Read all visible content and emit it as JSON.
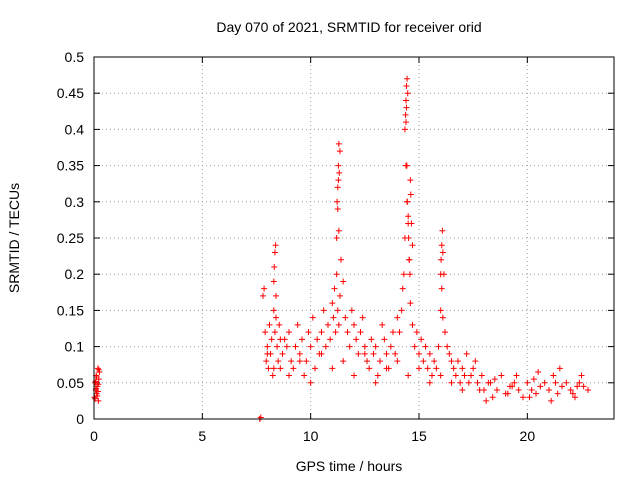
{
  "chart_data": {
    "type": "scatter",
    "title": "Day 070 of 2021, SRMTID for receiver orid",
    "xlabel": "GPS time / hours",
    "ylabel": "SRMTID / TECUs",
    "xlim": [
      0,
      24
    ],
    "ylim": [
      0,
      0.5
    ],
    "x_ticks": [
      "0",
      "5",
      "10",
      "15",
      "20"
    ],
    "y_ticks": [
      "0",
      "0.05",
      "0.1",
      "0.15",
      "0.2",
      "0.25",
      "0.3",
      "0.35",
      "0.4",
      "0.45",
      "0.5"
    ],
    "grid": true,
    "marker": "plus",
    "color": "#ff0000",
    "series": [
      {
        "x": [
          0.02,
          0.05,
          0.08,
          0.1,
          0.12,
          0.15,
          0.18,
          0.2,
          0.22,
          0.25,
          0.05,
          0.1,
          0.15,
          0.2,
          0.12,
          0.18,
          0.08,
          0.22,
          7.65,
          7.7,
          7.8,
          7.85,
          7.9,
          7.95,
          8.0,
          8.05,
          8.1,
          8.15,
          8.2,
          8.25,
          8.3,
          8.35,
          8.4,
          8.45,
          8.5,
          8.55,
          8.6,
          8.7,
          8.8,
          8.9,
          9.0,
          9.1,
          9.2,
          9.3,
          9.4,
          9.5,
          9.6,
          9.7,
          9.8,
          9.9,
          10.0,
          10.1,
          10.2,
          10.3,
          10.4,
          10.5,
          10.6,
          10.7,
          10.8,
          10.9,
          11.0,
          11.05,
          11.1,
          11.15,
          11.2,
          11.25,
          11.3,
          11.35,
          11.4,
          11.5,
          11.6,
          11.7,
          11.8,
          11.9,
          12.0,
          12.1,
          12.2,
          12.3,
          12.4,
          12.5,
          12.6,
          12.7,
          12.8,
          12.9,
          13.0,
          13.1,
          13.2,
          13.3,
          13.4,
          13.5,
          13.6,
          13.7,
          13.8,
          13.9,
          14.0,
          14.1,
          14.2,
          14.25,
          14.3,
          14.35,
          14.4,
          14.45,
          14.5,
          14.55,
          14.6,
          14.7,
          14.8,
          14.9,
          15.0,
          15.1,
          15.2,
          15.3,
          15.4,
          15.5,
          15.6,
          15.7,
          15.8,
          15.9,
          16.0,
          16.05,
          16.1,
          16.15,
          16.2,
          16.3,
          16.4,
          16.5,
          16.6,
          16.7,
          16.8,
          16.9,
          17.0,
          17.1,
          17.2,
          17.3,
          17.4,
          17.5,
          17.6,
          17.7,
          17.8,
          17.9,
          18.0,
          18.2,
          18.4,
          18.6,
          18.8,
          19.0,
          19.2,
          19.4,
          19.6,
          19.8,
          20.0,
          20.2,
          20.4,
          20.6,
          20.8,
          21.0,
          21.2,
          21.4,
          21.6,
          21.8,
          22.0,
          22.2,
          22.4,
          22.6,
          22.8,
          8.0,
          8.3,
          8.6,
          9.0,
          9.5,
          10.0,
          10.5,
          11.0,
          11.5,
          12.0,
          12.5,
          13.0,
          13.5,
          14.0,
          14.5,
          15.0,
          15.5,
          16.0,
          16.5,
          17.0,
          11.2,
          11.22,
          11.25,
          11.28,
          11.3,
          11.32,
          11.35,
          11.25,
          11.3,
          11.28,
          14.35,
          14.38,
          14.4,
          14.42,
          14.45,
          14.48,
          14.4,
          14.42,
          14.44,
          14.46,
          14.5,
          14.52,
          14.55,
          14.58,
          14.6,
          14.62,
          14.65,
          14.7,
          16.0,
          16.02,
          16.05,
          16.08,
          16.1,
          8.3,
          8.32,
          8.35,
          8.38,
          8.4,
          18.1,
          18.5,
          19.1,
          19.5,
          20.1,
          20.5,
          21.1,
          21.5,
          22.1,
          22.5,
          18.3,
          19.3,
          20.3,
          21.3,
          22.3
        ],
        "y": [
          0.03,
          0.05,
          0.04,
          0.06,
          0.035,
          0.045,
          0.07,
          0.025,
          0.055,
          0.065,
          0.028,
          0.042,
          0.032,
          0.048,
          0.058,
          0.038,
          0.052,
          0.068,
          0.0,
          0.002,
          0.17,
          0.18,
          0.12,
          0.08,
          0.1,
          0.07,
          0.13,
          0.09,
          0.11,
          0.06,
          0.15,
          0.12,
          0.14,
          0.1,
          0.08,
          0.13,
          0.07,
          0.09,
          0.11,
          0.1,
          0.12,
          0.08,
          0.07,
          0.1,
          0.13,
          0.09,
          0.11,
          0.06,
          0.08,
          0.12,
          0.1,
          0.14,
          0.07,
          0.11,
          0.09,
          0.12,
          0.15,
          0.1,
          0.13,
          0.11,
          0.16,
          0.14,
          0.18,
          0.12,
          0.2,
          0.15,
          0.13,
          0.17,
          0.22,
          0.19,
          0.14,
          0.12,
          0.1,
          0.15,
          0.13,
          0.11,
          0.09,
          0.12,
          0.14,
          0.1,
          0.08,
          0.07,
          0.11,
          0.09,
          0.1,
          0.06,
          0.08,
          0.13,
          0.11,
          0.09,
          0.07,
          0.1,
          0.12,
          0.09,
          0.14,
          0.12,
          0.15,
          0.18,
          0.2,
          0.25,
          0.35,
          0.3,
          0.27,
          0.22,
          0.16,
          0.13,
          0.1,
          0.12,
          0.09,
          0.11,
          0.08,
          0.1,
          0.07,
          0.09,
          0.06,
          0.08,
          0.07,
          0.1,
          0.15,
          0.18,
          0.14,
          0.2,
          0.12,
          0.1,
          0.09,
          0.08,
          0.07,
          0.06,
          0.08,
          0.05,
          0.07,
          0.06,
          0.09,
          0.05,
          0.06,
          0.07,
          0.08,
          0.05,
          0.04,
          0.06,
          0.04,
          0.05,
          0.03,
          0.04,
          0.06,
          0.035,
          0.045,
          0.05,
          0.04,
          0.03,
          0.05,
          0.04,
          0.035,
          0.045,
          0.05,
          0.04,
          0.06,
          0.035,
          0.045,
          0.05,
          0.04,
          0.03,
          0.05,
          0.045,
          0.04,
          0.09,
          0.07,
          0.11,
          0.06,
          0.08,
          0.05,
          0.09,
          0.07,
          0.08,
          0.06,
          0.09,
          0.05,
          0.07,
          0.08,
          0.06,
          0.07,
          0.05,
          0.06,
          0.05,
          0.04,
          0.25,
          0.3,
          0.32,
          0.35,
          0.38,
          0.34,
          0.37,
          0.29,
          0.26,
          0.33,
          0.4,
          0.42,
          0.44,
          0.46,
          0.47,
          0.45,
          0.41,
          0.43,
          0.35,
          0.3,
          0.28,
          0.25,
          0.22,
          0.2,
          0.33,
          0.31,
          0.27,
          0.24,
          0.2,
          0.22,
          0.24,
          0.26,
          0.23,
          0.19,
          0.21,
          0.23,
          0.24,
          0.17,
          0.025,
          0.055,
          0.035,
          0.06,
          0.03,
          0.065,
          0.025,
          0.07,
          0.035,
          0.06,
          0.05,
          0.045,
          0.055,
          0.05,
          0.045
        ]
      }
    ]
  }
}
